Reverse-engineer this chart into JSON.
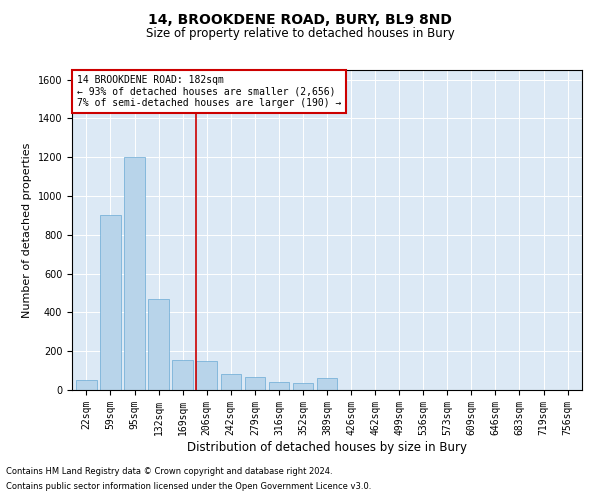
{
  "title": "14, BROOKDENE ROAD, BURY, BL9 8ND",
  "subtitle": "Size of property relative to detached houses in Bury",
  "xlabel": "Distribution of detached houses by size in Bury",
  "ylabel": "Number of detached properties",
  "footnote1": "Contains HM Land Registry data © Crown copyright and database right 2024.",
  "footnote2": "Contains public sector information licensed under the Open Government Licence v3.0.",
  "annotation_line1": "14 BROOKDENE ROAD: 182sqm",
  "annotation_line2": "← 93% of detached houses are smaller (2,656)",
  "annotation_line3": "7% of semi-detached houses are larger (190) →",
  "bar_color": "#b8d4ea",
  "bar_edge_color": "#6aaad4",
  "vline_color": "#cc0000",
  "annotation_box_color": "#cc0000",
  "bg_color": "#dce9f5",
  "categories": [
    "22sqm",
    "59sqm",
    "95sqm",
    "132sqm",
    "169sqm",
    "206sqm",
    "242sqm",
    "279sqm",
    "316sqm",
    "352sqm",
    "389sqm",
    "426sqm",
    "462sqm",
    "499sqm",
    "536sqm",
    "573sqm",
    "609sqm",
    "646sqm",
    "683sqm",
    "719sqm",
    "756sqm"
  ],
  "values": [
    50,
    900,
    1200,
    470,
    155,
    150,
    80,
    65,
    40,
    35,
    60,
    0,
    0,
    0,
    0,
    0,
    0,
    0,
    0,
    0,
    0
  ],
  "ylim": [
    0,
    1650
  ],
  "yticks": [
    0,
    200,
    400,
    600,
    800,
    1000,
    1200,
    1400,
    1600
  ],
  "vline_x_index": 4.55,
  "title_fontsize": 10,
  "subtitle_fontsize": 8.5,
  "ylabel_fontsize": 8,
  "xlabel_fontsize": 8.5,
  "tick_fontsize": 7,
  "annot_fontsize": 7,
  "footnote_fontsize": 6
}
